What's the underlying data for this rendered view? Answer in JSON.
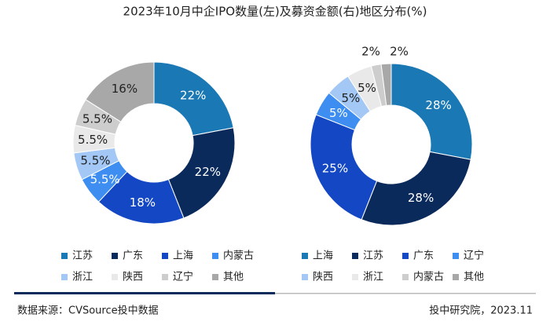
{
  "title": "2023年10月中企IPO数量(左)及募资金额(右)地区分布(%)",
  "chart_data": [
    {
      "type": "pie",
      "categories": [
        "江苏",
        "广东",
        "上海",
        "内蒙古",
        "浙江",
        "陕西",
        "辽宁",
        "其他"
      ],
      "values": [
        22,
        22,
        18,
        5.5,
        5.5,
        5.5,
        5.5,
        16
      ],
      "value_labels": [
        "22%",
        "22%",
        "18%",
        "5.5%",
        "5.5%",
        "5.5%",
        "5.5%",
        "16%"
      ],
      "colors": [
        "#1a78b4",
        "#0b2a5c",
        "#1347c4",
        "#3d8ef0",
        "#a3c8f6",
        "#e9e9e9",
        "#cdcdcd",
        "#a8a8a8"
      ]
    },
    {
      "type": "pie",
      "categories": [
        "上海",
        "江苏",
        "广东",
        "辽宁",
        "陕西",
        "浙江",
        "内蒙古",
        "其他"
      ],
      "values": [
        28,
        28,
        25,
        5,
        5,
        5,
        2,
        2
      ],
      "value_labels": [
        "28%",
        "28%",
        "25%",
        "5%",
        "5%",
        "5%",
        "2%",
        "2%"
      ],
      "colors": [
        "#1a78b4",
        "#0b2a5c",
        "#1347c4",
        "#3d8ef0",
        "#a3c8f6",
        "#e9e9e9",
        "#cdcdcd",
        "#a8a8a8"
      ]
    }
  ],
  "footer": {
    "source": "数据来源：CVSource投中数据",
    "credit": "投中研究院，2023.11"
  }
}
